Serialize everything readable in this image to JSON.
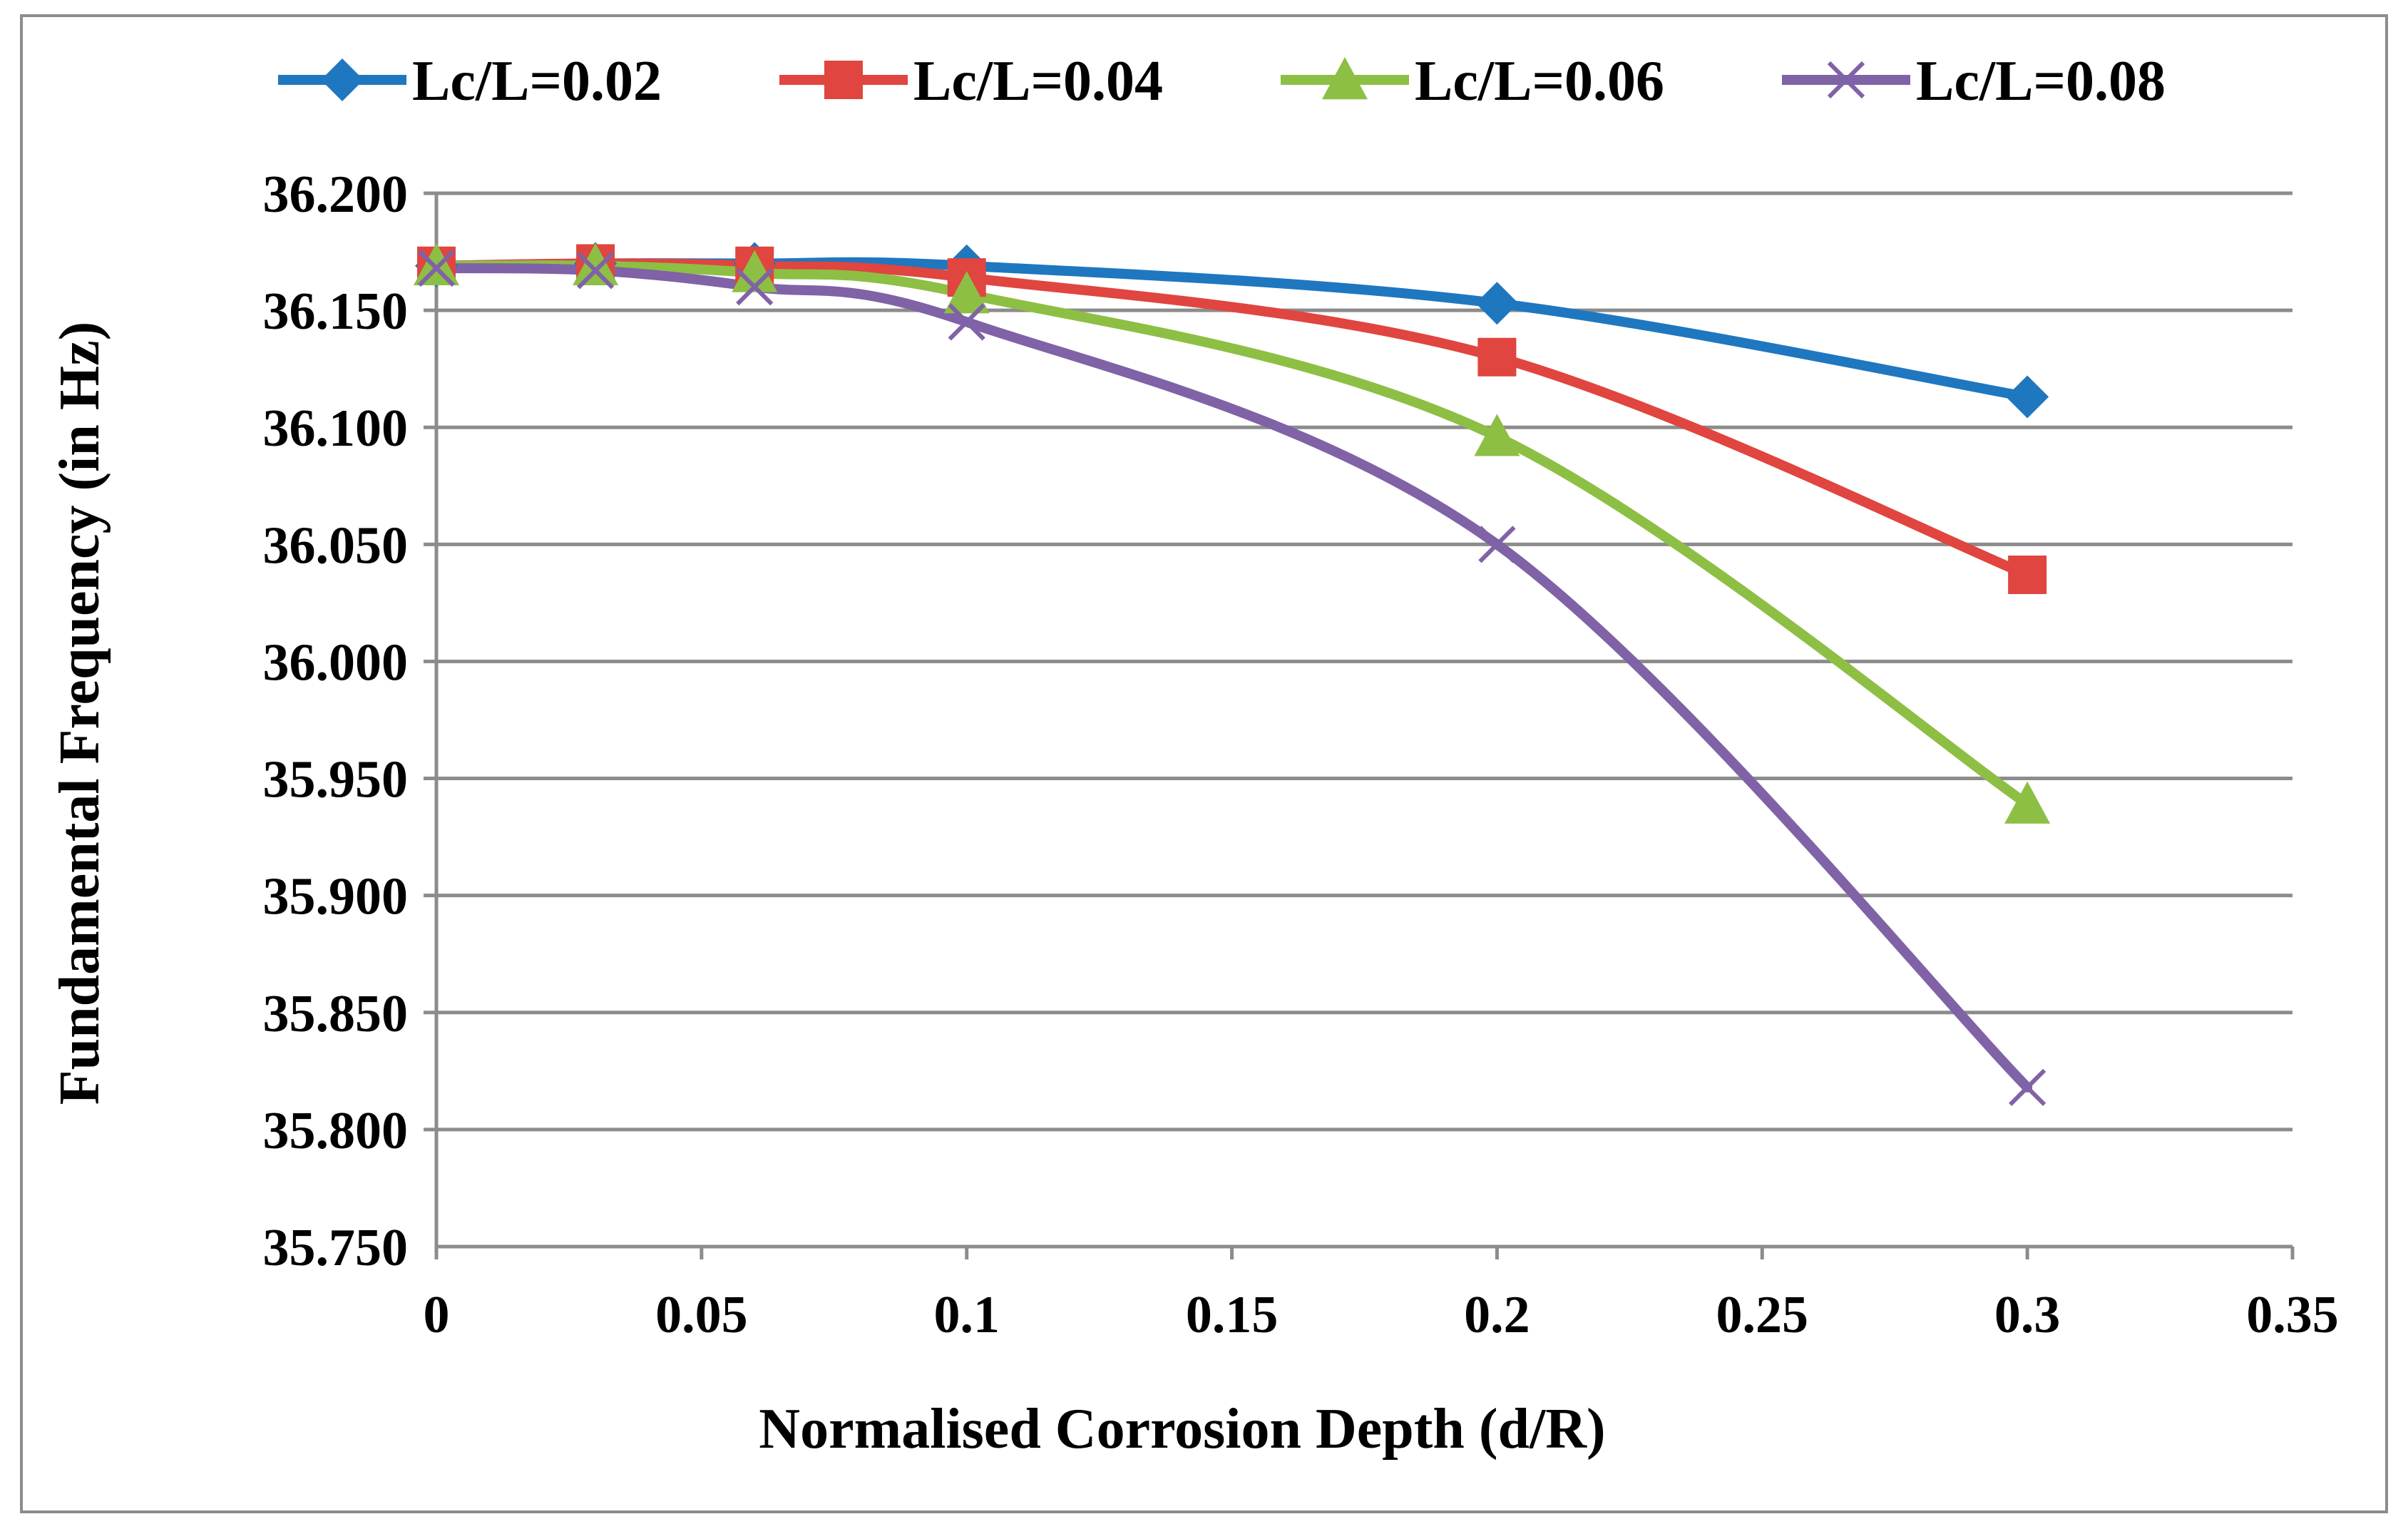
{
  "chart_data": {
    "type": "line",
    "title": "",
    "xlabel": "Normalised Corrosion Depth (d/R)",
    "ylabel": "Fundamental Frequency (in Hz)",
    "xlim": [
      0,
      0.35
    ],
    "ylim": [
      35.75,
      36.2
    ],
    "x_ticks": [
      "0",
      "0.05",
      "0.1",
      "0.15",
      "0.2",
      "0.25",
      "0.3",
      "0.35"
    ],
    "y_ticks": [
      "35.750",
      "35.800",
      "35.850",
      "35.900",
      "35.950",
      "36.000",
      "36.050",
      "36.100",
      "36.150",
      "36.200"
    ],
    "grid": "horizontal",
    "legend_position": "top",
    "series": [
      {
        "name": "Lc/L=0.02",
        "color": "#1F77C0",
        "marker": "diamond",
        "x": [
          0,
          0.03,
          0.06,
          0.1,
          0.2,
          0.3
        ],
        "values": [
          36.169,
          36.17,
          36.17,
          36.169,
          36.153,
          36.113
        ]
      },
      {
        "name": "Lc/L=0.04",
        "color": "#E0453F",
        "marker": "square",
        "x": [
          0,
          0.03,
          0.06,
          0.1,
          0.2,
          0.3
        ],
        "values": [
          36.169,
          36.17,
          36.169,
          36.164,
          36.13,
          36.037
        ]
      },
      {
        "name": "Lc/L=0.06",
        "color": "#8DBF44",
        "marker": "triangle",
        "x": [
          0,
          0.03,
          0.06,
          0.1,
          0.2,
          0.3
        ],
        "values": [
          36.169,
          36.169,
          36.166,
          36.157,
          36.096,
          35.939
        ]
      },
      {
        "name": "Lc/L=0.08",
        "color": "#8062A6",
        "marker": "x",
        "x": [
          0,
          0.03,
          0.06,
          0.1,
          0.2,
          0.3
        ],
        "values": [
          36.168,
          36.167,
          36.16,
          36.145,
          36.05,
          35.818
        ]
      }
    ]
  }
}
